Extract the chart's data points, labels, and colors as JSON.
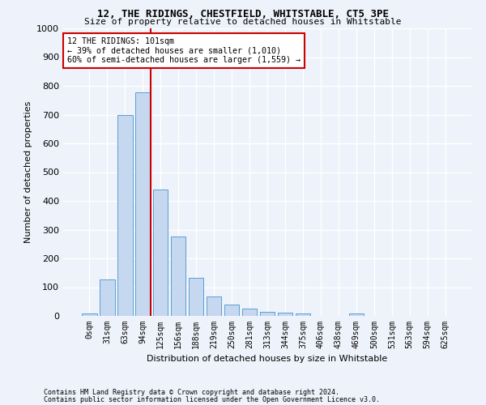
{
  "title1": "12, THE RIDINGS, CHESTFIELD, WHITSTABLE, CT5 3PE",
  "title2": "Size of property relative to detached houses in Whitstable",
  "xlabel": "Distribution of detached houses by size in Whitstable",
  "ylabel": "Number of detached properties",
  "bar_labels": [
    "0sqm",
    "31sqm",
    "63sqm",
    "94sqm",
    "125sqm",
    "156sqm",
    "188sqm",
    "219sqm",
    "250sqm",
    "281sqm",
    "313sqm",
    "344sqm",
    "375sqm",
    "406sqm",
    "438sqm",
    "469sqm",
    "500sqm",
    "531sqm",
    "563sqm",
    "594sqm",
    "625sqm"
  ],
  "bar_values": [
    8,
    128,
    700,
    778,
    440,
    275,
    133,
    68,
    40,
    25,
    15,
    12,
    8,
    0,
    0,
    8,
    0,
    0,
    0,
    0,
    0
  ],
  "bar_color": "#c5d8f0",
  "bar_edge_color": "#5a9fd4",
  "ylim": [
    0,
    1000
  ],
  "yticks": [
    0,
    100,
    200,
    300,
    400,
    500,
    600,
    700,
    800,
    900,
    1000
  ],
  "property_line_color": "#cc0000",
  "annotation_text": "12 THE RIDINGS: 101sqm\n← 39% of detached houses are smaller (1,010)\n60% of semi-detached houses are larger (1,559) →",
  "annotation_box_color": "#ffffff",
  "annotation_box_edge": "#cc0000",
  "footnote1": "Contains HM Land Registry data © Crown copyright and database right 2024.",
  "footnote2": "Contains public sector information licensed under the Open Government Licence v3.0.",
  "bg_color": "#eef2fa",
  "grid_color": "#ffffff"
}
